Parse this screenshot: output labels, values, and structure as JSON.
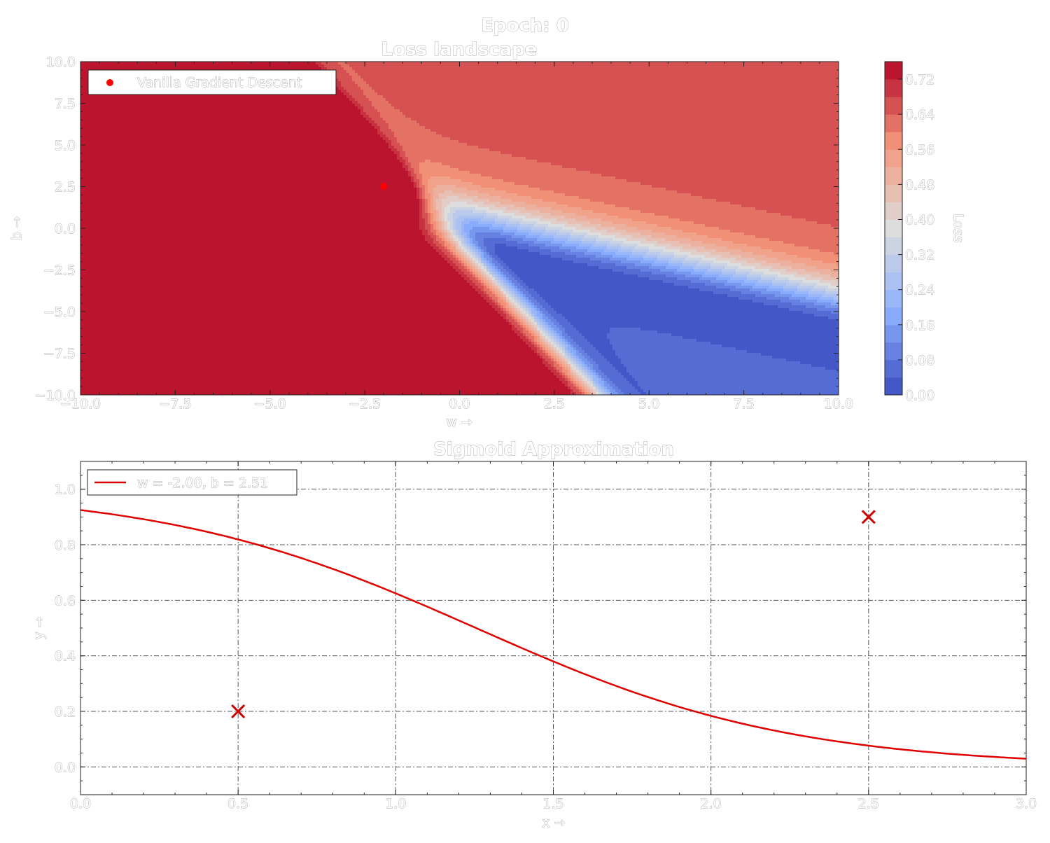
{
  "figure": {
    "suptitle": "Epoch: 0"
  },
  "colors": {
    "descent_marker": "#ff0000",
    "sigmoid_line": "#e00000",
    "data_marker": "#d10000",
    "label_fill": "#ffffff",
    "label_outline": "#a9a9a9"
  },
  "chart_data": [
    {
      "type": "heatmap",
      "title": "Loss landscape",
      "xlabel": "w →",
      "ylabel": "b →",
      "xlim": [
        -10,
        10
      ],
      "ylim": [
        -10,
        10
      ],
      "xticks": [
        "−10.0",
        "−7.5",
        "−5.0",
        "−2.5",
        "0.0",
        "2.5",
        "5.0",
        "7.5",
        "10.0"
      ],
      "yticks": [
        "10.0",
        "7.5",
        "5.0",
        "2.5",
        "0.0",
        "−2.5",
        "−5.0",
        "−7.5",
        "−10.0"
      ],
      "colorbar": {
        "label": "Loss",
        "ticks": [
          "0.72",
          "0.64",
          "0.56",
          "0.48",
          "0.40",
          "0.32",
          "0.24",
          "0.16",
          "0.08",
          "0.00"
        ],
        "range": [
          0,
          0.76
        ],
        "levels": 19,
        "colormap": "coolwarm"
      },
      "points": [
        {
          "name": "Vanilla Gradient Descent",
          "w": -2.0,
          "b": 2.51
        }
      ],
      "legend": "top-left",
      "training_data": [
        {
          "x": 0.5,
          "y": 0.2
        },
        {
          "x": 2.5,
          "y": 0.9
        }
      ]
    },
    {
      "type": "line",
      "title": "Sigmoid Approximation",
      "xlabel": "x →",
      "ylabel": "y →",
      "xlim": [
        0,
        3
      ],
      "ylim": [
        -0.1,
        1.1
      ],
      "xticks": [
        "0.0",
        "0.5",
        "1.0",
        "1.5",
        "2.0",
        "2.5",
        "3.0"
      ],
      "yticks": [
        "1.0",
        "0.8",
        "0.6",
        "0.4",
        "0.2",
        "0.0"
      ],
      "grid": true,
      "legend": "top-left",
      "series": [
        {
          "name": "w = -2.00, b = 2.51",
          "kind": "sigmoid",
          "w": -2.0,
          "b": 2.51
        }
      ],
      "scatter": [
        {
          "x": 0.5,
          "y": 0.2
        },
        {
          "x": 2.5,
          "y": 0.9
        }
      ]
    }
  ]
}
